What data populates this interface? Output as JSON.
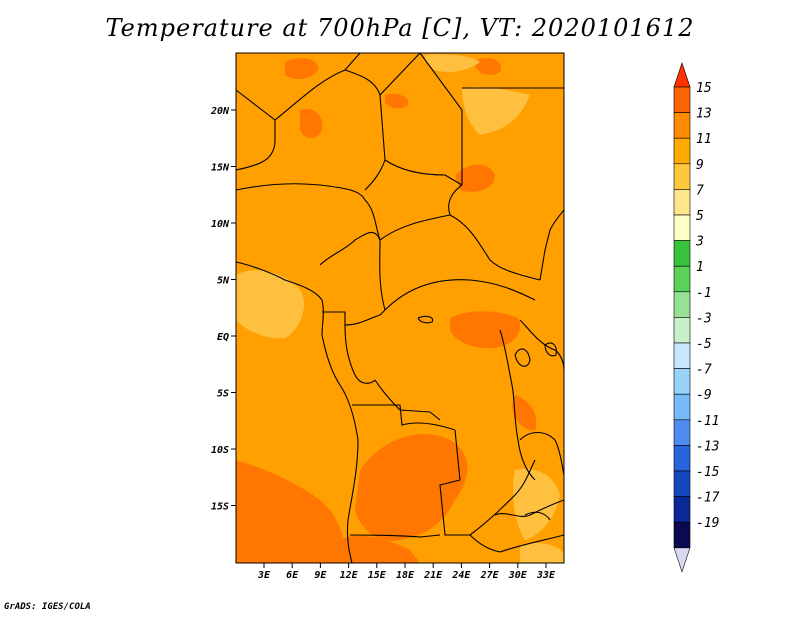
{
  "title": "Temperature at 700hPa [C], VT: 2020101612",
  "credit": "GrADS: IGES/COLA",
  "map": {
    "lat_labels": [
      "20N",
      "15N",
      "10N",
      "5N",
      "EQ",
      "5S",
      "10S",
      "15S"
    ],
    "lon_labels": [
      "3E",
      "6E",
      "9E",
      "12E",
      "15E",
      "18E",
      "21E",
      "24E",
      "27E",
      "30E",
      "33E"
    ],
    "colors": {
      "background_field": "#ffa000",
      "warm_field": "#ff7700",
      "cool_field": "#ffc040",
      "boundary": "#000000"
    }
  },
  "colorbar": {
    "levels": [
      "15",
      "13",
      "11",
      "9",
      "7",
      "5",
      "3",
      "1",
      "-1",
      "-3",
      "-5",
      "-7",
      "-9",
      "-11",
      "-13",
      "-15",
      "-17",
      "-19"
    ],
    "colors": [
      "#ff3200",
      "#ff6400",
      "#ff8c00",
      "#ffaa00",
      "#ffc83c",
      "#ffe68c",
      "#ffffc8",
      "#37c33c",
      "#5ad25a",
      "#96e196",
      "#c8f0c8",
      "#c8e6ff",
      "#96d2fa",
      "#78b9fa",
      "#508cf0",
      "#2864dc",
      "#1446be",
      "#0a2896",
      "#0a0a50",
      "#d8d8f0"
    ]
  }
}
